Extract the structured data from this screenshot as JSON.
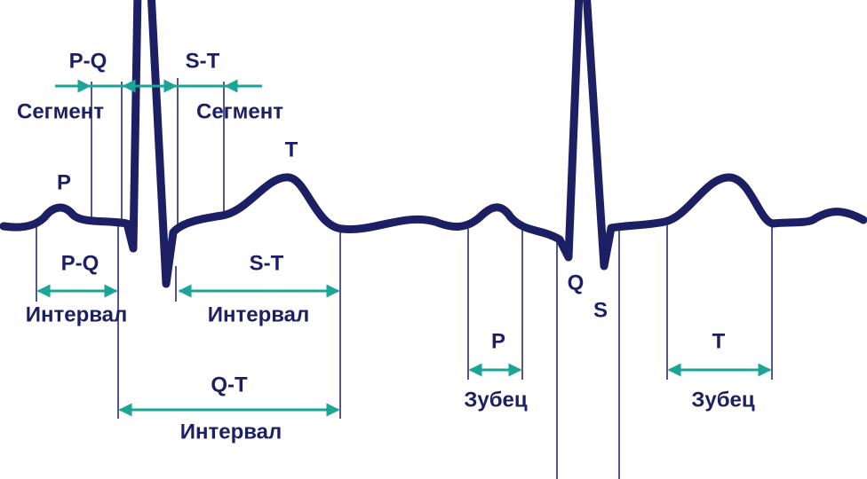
{
  "segments": [
    {
      "name": "P-Q",
      "label": "Сегмент"
    },
    {
      "name": "S-T",
      "label": "Сегмент"
    }
  ],
  "waves": {
    "p": "P",
    "t": "T",
    "q": "Q",
    "s": "S"
  },
  "intervals": [
    {
      "name": "P-Q",
      "label": "Интервал"
    },
    {
      "name": "S-T",
      "label": "Интервал"
    },
    {
      "name": "Q-T",
      "label": "Интервал"
    }
  ],
  "teeth": [
    {
      "name": "P",
      "label": "Зубец"
    },
    {
      "name": "T",
      "label": "Зубец"
    }
  ]
}
